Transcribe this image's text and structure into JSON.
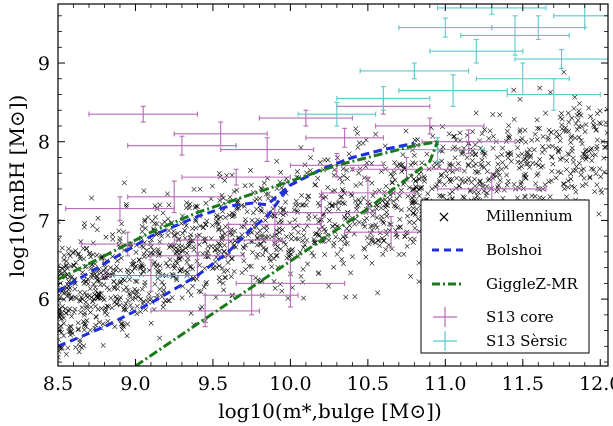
{
  "chart_data": {
    "type": "scatter",
    "xlabel": "log10(m*,bulge [M⊙])",
    "ylabel": "log10(mBH [M⊙])",
    "xlim": [
      8.5,
      12.05
    ],
    "ylim": [
      5.15,
      9.75
    ],
    "x_ticks": [
      "8.5",
      "9.0",
      "9.5",
      "10.0",
      "10.5",
      "11.0",
      "11.5",
      "12.0"
    ],
    "y_ticks": [
      "6",
      "7",
      "8",
      "9"
    ],
    "grid": false,
    "legend_position": "bottom-right",
    "legend": [
      {
        "label": "Millennium",
        "marker": "x",
        "color": "#000000"
      },
      {
        "label": "Bolshoi",
        "style": "dashed",
        "color": "#1f2fe0"
      },
      {
        "label": "GiggleZ-MR",
        "style": "dash-dot",
        "color": "#1a7a1a"
      },
      {
        "label": "S13 core",
        "marker": "errorbar",
        "color": "#b86ab8"
      },
      {
        "label": "S13 Sèrsic",
        "marker": "errorbar",
        "color": "#5cc8c8"
      }
    ],
    "colors": {
      "millennium": "#000000",
      "bolshoi": "#1f2fe0",
      "gigglez": "#1a7a1a",
      "s13_core": "#b86ab8",
      "s13_sersic": "#5cc8c8"
    },
    "series": [
      {
        "name": "Bolshoi",
        "style": "dashed",
        "upper": {
          "x": [
            8.5,
            8.8,
            9.1,
            9.4,
            9.6,
            9.75,
            9.85,
            10.0,
            10.2,
            10.4,
            10.6,
            10.8
          ],
          "y": [
            6.1,
            6.45,
            6.8,
            7.05,
            7.18,
            7.22,
            7.2,
            7.45,
            7.65,
            7.8,
            7.9,
            7.98
          ]
        },
        "lower": {
          "x": [
            8.5,
            8.8,
            9.1,
            9.4,
            9.6,
            9.75,
            9.85,
            10.0,
            10.2,
            10.4,
            10.6,
            10.8
          ],
          "y": [
            5.4,
            5.65,
            5.95,
            6.3,
            6.6,
            6.9,
            7.05,
            7.45,
            7.65,
            7.8,
            7.9,
            7.98
          ]
        }
      },
      {
        "name": "GiggleZ-MR",
        "style": "dash-dot",
        "upper": {
          "x": [
            8.5,
            8.8,
            9.1,
            9.4,
            9.7,
            10.0,
            10.3,
            10.6,
            10.8,
            10.95
          ],
          "y": [
            6.25,
            6.55,
            6.85,
            7.1,
            7.3,
            7.5,
            7.7,
            7.85,
            7.95,
            8.0
          ]
        },
        "lower": {
          "x": [
            9.0,
            9.3,
            9.6,
            9.9,
            10.2,
            10.5,
            10.7,
            10.9,
            10.95
          ],
          "y": [
            5.15,
            5.55,
            5.95,
            6.35,
            6.75,
            7.15,
            7.45,
            7.75,
            8.0
          ]
        }
      },
      {
        "name": "S13 core",
        "marker": "errorbar",
        "points": [
          {
            "x": 9.3,
            "y": 7.95,
            "xerr": 0.35,
            "yerr": 0.12
          },
          {
            "x": 9.55,
            "y": 8.1,
            "xerr": 0.3,
            "yerr": 0.15
          },
          {
            "x": 9.05,
            "y": 8.35,
            "xerr": 0.35,
            "yerr": 0.1
          },
          {
            "x": 9.85,
            "y": 7.9,
            "xerr": 0.3,
            "yerr": 0.15
          },
          {
            "x": 9.65,
            "y": 7.55,
            "xerr": 0.35,
            "yerr": 0.1
          },
          {
            "x": 9.25,
            "y": 7.3,
            "xerr": 0.3,
            "yerr": 0.2
          },
          {
            "x": 8.9,
            "y": 7.15,
            "xerr": 0.35,
            "yerr": 0.15
          },
          {
            "x": 10.1,
            "y": 8.3,
            "xerr": 0.3,
            "yerr": 0.1
          },
          {
            "x": 10.35,
            "y": 8.05,
            "xerr": 0.25,
            "yerr": 0.12
          },
          {
            "x": 10.6,
            "y": 8.45,
            "xerr": 0.3,
            "yerr": 0.1
          },
          {
            "x": 10.75,
            "y": 7.65,
            "xerr": 0.35,
            "yerr": 0.15
          },
          {
            "x": 10.2,
            "y": 7.1,
            "xerr": 0.35,
            "yerr": 0.2
          },
          {
            "x": 9.9,
            "y": 6.95,
            "xerr": 0.3,
            "yerr": 0.25
          },
          {
            "x": 9.6,
            "y": 6.75,
            "xerr": 0.35,
            "yerr": 0.2
          },
          {
            "x": 9.4,
            "y": 6.55,
            "xerr": 0.3,
            "yerr": 0.25
          },
          {
            "x": 9.1,
            "y": 6.3,
            "xerr": 0.3,
            "yerr": 0.2
          },
          {
            "x": 10.5,
            "y": 7.35,
            "xerr": 0.3,
            "yerr": 0.2
          },
          {
            "x": 10.9,
            "y": 8.2,
            "xerr": 0.35,
            "yerr": 0.1
          },
          {
            "x": 11.15,
            "y": 8.0,
            "xerr": 0.3,
            "yerr": 0.15
          },
          {
            "x": 10.0,
            "y": 6.2,
            "xerr": 0.35,
            "yerr": 0.3
          },
          {
            "x": 9.75,
            "y": 6.05,
            "xerr": 0.3,
            "yerr": 0.25
          },
          {
            "x": 10.65,
            "y": 6.85,
            "xerr": 0.3,
            "yerr": 0.2
          },
          {
            "x": 9.45,
            "y": 5.85,
            "xerr": 0.35,
            "yerr": 0.2
          },
          {
            "x": 8.95,
            "y": 6.7,
            "xerr": 0.3,
            "yerr": 0.15
          },
          {
            "x": 10.3,
            "y": 7.7,
            "xerr": 0.3,
            "yerr": 0.15
          },
          {
            "x": 11.3,
            "y": 7.4,
            "xerr": 0.35,
            "yerr": 0.2
          }
        ]
      },
      {
        "name": "S13 Sèrsic",
        "marker": "errorbar",
        "points": [
          {
            "x": 11.3,
            "y": 9.7,
            "xerr": 0.35,
            "yerr": 0.08
          },
          {
            "x": 11.6,
            "y": 9.45,
            "xerr": 0.3,
            "yerr": 0.15
          },
          {
            "x": 11.75,
            "y": 9.05,
            "xerr": 0.3,
            "yerr": 0.12
          },
          {
            "x": 11.45,
            "y": 9.35,
            "xerr": 0.35,
            "yerr": 0.25
          },
          {
            "x": 11.05,
            "y": 8.65,
            "xerr": 0.35,
            "yerr": 0.2
          },
          {
            "x": 11.5,
            "y": 8.8,
            "xerr": 0.3,
            "yerr": 0.2
          },
          {
            "x": 11.9,
            "y": 9.6,
            "xerr": 0.2,
            "yerr": 0.15
          },
          {
            "x": 11.2,
            "y": 9.15,
            "xerr": 0.3,
            "yerr": 0.15
          },
          {
            "x": 10.6,
            "y": 8.55,
            "xerr": 0.3,
            "yerr": 0.15
          },
          {
            "x": 10.8,
            "y": 8.9,
            "xerr": 0.35,
            "yerr": 0.1
          },
          {
            "x": 11.0,
            "y": 9.45,
            "xerr": 0.3,
            "yerr": 0.12
          },
          {
            "x": 10.3,
            "y": 8.35,
            "xerr": 0.25,
            "yerr": 0.15
          },
          {
            "x": 11.7,
            "y": 8.6,
            "xerr": 0.3,
            "yerr": 0.2
          },
          {
            "x": 10.95,
            "y": 7.9,
            "xerr": 0.3,
            "yerr": 0.15
          }
        ]
      }
    ]
  }
}
